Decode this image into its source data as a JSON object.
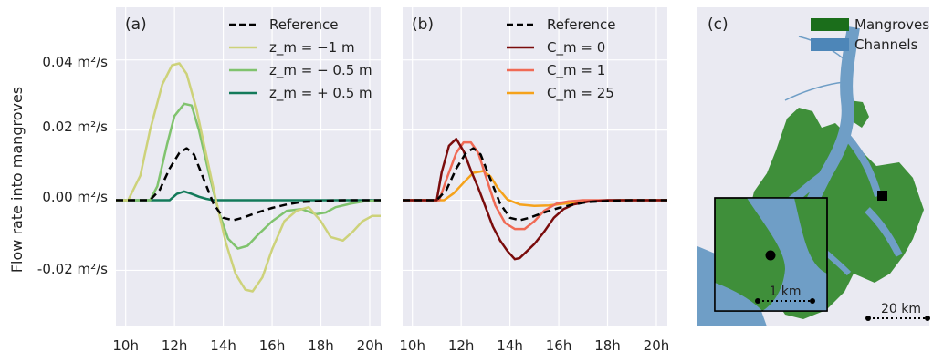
{
  "figure": {
    "ylabel": "Flow rate into mangroves",
    "ytick_labels": [
      "0.04 m²/s",
      "0.02 m²/s",
      "0.00 m²/s",
      "-0.02 m²/s"
    ],
    "xtick_labels": [
      "10h",
      "12h",
      "14h",
      "16h",
      "18h",
      "20h"
    ]
  },
  "chart_data": [
    {
      "type": "line",
      "panel_label": "(a)",
      "xlim": [
        9.6,
        20.45
      ],
      "ylim": [
        -0.036,
        0.055
      ],
      "yticks": [
        0.04,
        0.02,
        0.0,
        -0.02
      ],
      "xticks": [
        10,
        12,
        14,
        16,
        18,
        20
      ],
      "grid": true,
      "legend_position": "top-right",
      "series": [
        {
          "name": "Reference",
          "color": "#000000",
          "dash": "dashed",
          "x": [
            9.6,
            11.0,
            11.4,
            11.8,
            12.2,
            12.5,
            12.8,
            13.2,
            13.6,
            14.0,
            14.4,
            14.8,
            15.4,
            16.0,
            16.6,
            17.2,
            17.8,
            18.4,
            19.0,
            19.6,
            20.45
          ],
          "y": [
            0.0,
            0.0,
            0.003,
            0.009,
            0.0135,
            0.0148,
            0.013,
            0.006,
            -0.001,
            -0.005,
            -0.0057,
            -0.005,
            -0.0035,
            -0.0022,
            -0.0012,
            -0.0005,
            -0.0003,
            -0.0001,
            0.0,
            0.0,
            0.0
          ]
        },
        {
          "name": "z_m = −1 m",
          "color": "#cdd27a",
          "dash": "solid",
          "x": [
            9.6,
            10.1,
            10.6,
            11.0,
            11.5,
            11.9,
            12.2,
            12.5,
            12.9,
            13.3,
            13.7,
            14.1,
            14.5,
            14.9,
            15.2,
            15.6,
            16.0,
            16.5,
            17.0,
            17.5,
            18.0,
            18.4,
            18.9,
            19.3,
            19.7,
            20.1,
            20.45
          ],
          "y": [
            0.0,
            0.0,
            0.007,
            0.02,
            0.033,
            0.0385,
            0.039,
            0.036,
            0.026,
            0.013,
            0.0,
            -0.012,
            -0.021,
            -0.0255,
            -0.026,
            -0.022,
            -0.014,
            -0.006,
            -0.003,
            -0.002,
            -0.006,
            -0.0105,
            -0.0115,
            -0.009,
            -0.006,
            -0.0045,
            -0.0045
          ]
        },
        {
          "name": "z_m = − 0.5 m",
          "color": "#80c36e",
          "dash": "solid",
          "x": [
            9.6,
            11.0,
            11.3,
            11.7,
            12.0,
            12.4,
            12.7,
            13.0,
            13.4,
            13.8,
            14.2,
            14.6,
            15.0,
            15.4,
            16.0,
            16.6,
            17.2,
            17.8,
            18.2,
            18.6,
            19.2,
            19.8,
            20.45
          ],
          "y": [
            0.0,
            0.0,
            0.004,
            0.016,
            0.024,
            0.0275,
            0.027,
            0.02,
            0.008,
            -0.003,
            -0.011,
            -0.0138,
            -0.013,
            -0.01,
            -0.006,
            -0.003,
            -0.0025,
            -0.004,
            -0.0035,
            -0.002,
            -0.001,
            -0.0003,
            0.0
          ]
        },
        {
          "name": "z_m = + 0.5 m",
          "color": "#137a5a",
          "dash": "solid",
          "x": [
            9.6,
            11.8,
            12.1,
            12.4,
            12.7,
            13.0,
            13.3,
            13.6,
            20.45
          ],
          "y": [
            0.0,
            0.0,
            0.0018,
            0.0025,
            0.0018,
            0.001,
            0.0004,
            0.0,
            0.0
          ]
        }
      ]
    },
    {
      "type": "line",
      "panel_label": "(b)",
      "xlim": [
        9.6,
        20.45
      ],
      "ylim": [
        -0.036,
        0.055
      ],
      "yticks": [
        0.04,
        0.02,
        0.0,
        -0.02
      ],
      "xticks": [
        10,
        12,
        14,
        16,
        18,
        20
      ],
      "grid": true,
      "legend_position": "top-right",
      "series": [
        {
          "name": "Reference",
          "color": "#000000",
          "dash": "dashed",
          "x": [
            9.6,
            11.0,
            11.4,
            11.8,
            12.2,
            12.5,
            12.8,
            13.2,
            13.6,
            14.0,
            14.4,
            14.8,
            15.4,
            16.0,
            16.6,
            17.2,
            17.8,
            18.4,
            19.0,
            20.45
          ],
          "y": [
            0.0,
            0.0,
            0.003,
            0.009,
            0.0135,
            0.0148,
            0.013,
            0.006,
            -0.001,
            -0.005,
            -0.0057,
            -0.005,
            -0.0035,
            -0.0022,
            -0.0012,
            -0.0005,
            -0.0003,
            -0.0001,
            0.0,
            0.0
          ]
        },
        {
          "name": "C_m = 0",
          "color": "#7a0c0c",
          "dash": "solid",
          "x": [
            9.6,
            11.0,
            11.2,
            11.5,
            11.8,
            12.1,
            12.4,
            12.7,
            13.0,
            13.3,
            13.6,
            13.9,
            14.2,
            14.4,
            14.7,
            15.0,
            15.4,
            15.8,
            16.2,
            16.6,
            17.2,
            18.0,
            19.0,
            20.45
          ],
          "y": [
            0.0,
            0.0,
            0.008,
            0.0155,
            0.0175,
            0.014,
            0.0085,
            0.0035,
            -0.002,
            -0.0075,
            -0.0115,
            -0.0145,
            -0.0168,
            -0.0165,
            -0.0145,
            -0.0125,
            -0.009,
            -0.005,
            -0.0025,
            -0.0012,
            -0.0004,
            0.0,
            0.0,
            0.0
          ]
        },
        {
          "name": "C_m = 1",
          "color": "#f06a55",
          "dash": "solid",
          "x": [
            9.6,
            11.1,
            11.4,
            11.8,
            12.1,
            12.4,
            12.7,
            13.0,
            13.4,
            13.8,
            14.2,
            14.6,
            15.0,
            15.4,
            15.9,
            16.4,
            17.0,
            18.0,
            20.45
          ],
          "y": [
            0.0,
            0.0,
            0.006,
            0.0135,
            0.0165,
            0.0165,
            0.0135,
            0.007,
            -0.0015,
            -0.0065,
            -0.0082,
            -0.0082,
            -0.006,
            -0.003,
            -0.001,
            -0.0003,
            0.0,
            0.0,
            0.0
          ]
        },
        {
          "name": "C_m = 25",
          "color": "#f5a21b",
          "dash": "solid",
          "x": [
            9.6,
            11.3,
            11.7,
            12.1,
            12.5,
            12.9,
            13.2,
            13.5,
            13.9,
            14.4,
            15.0,
            15.6,
            16.2,
            16.8,
            17.5,
            18.5,
            20.45
          ],
          "y": [
            0.0,
            0.0,
            0.002,
            0.005,
            0.0078,
            0.0083,
            0.0068,
            0.0035,
            0.0002,
            -0.0012,
            -0.0016,
            -0.0015,
            -0.001,
            -0.0005,
            -0.0002,
            0.0,
            0.0
          ]
        }
      ]
    }
  ],
  "map_panel": {
    "panel_label": "(c)",
    "legend": [
      {
        "label": "Mangroves",
        "color": "#1b6e1b"
      },
      {
        "label": "Channels",
        "color": "#4d86b8"
      }
    ],
    "inset_scale_label": "1 km",
    "scale_label": "20 km"
  }
}
